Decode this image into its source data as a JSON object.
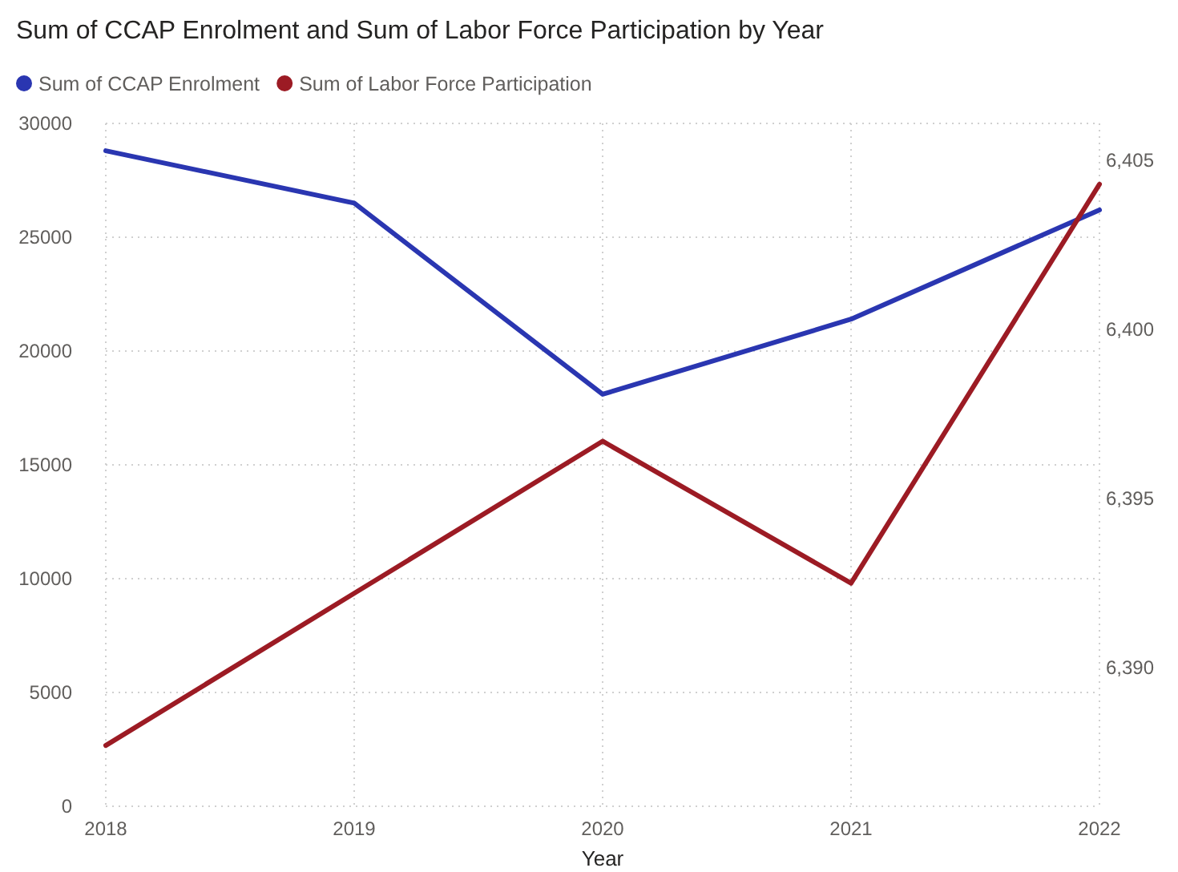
{
  "chart_data": {
    "type": "line",
    "title": "Sum of CCAP Enrolment and Sum of Labor Force Participation by Year",
    "xlabel": "Year",
    "categories": [
      "2018",
      "2019",
      "2020",
      "2021",
      "2022"
    ],
    "series": [
      {
        "name": "Sum of CCAP Enrolment",
        "color": "#2a36b1",
        "values": [
          28800,
          26500,
          18100,
          21400,
          26200
        ]
      },
      {
        "name": "Sum of Labor Force Participation",
        "color": "#9c1b24",
        "axis": "y2",
        "values": [
          6387.7,
          6392.2,
          6396.7,
          6392.5,
          6404.3
        ]
      }
    ],
    "ylim": [
      0,
      30000
    ],
    "yticks": [
      0,
      5000,
      10000,
      15000,
      20000,
      25000,
      30000
    ],
    "y2lim": [
      6385.9,
      6406.1
    ],
    "y2ticks": [
      {
        "value": 6390,
        "label": "6,390"
      },
      {
        "value": 6395,
        "label": "6,395"
      },
      {
        "value": 6400,
        "label": "6,400"
      },
      {
        "value": 6405,
        "label": "6,405"
      }
    ],
    "grid": true,
    "legend": "top left",
    "marker": "none",
    "line_style": "solid"
  }
}
